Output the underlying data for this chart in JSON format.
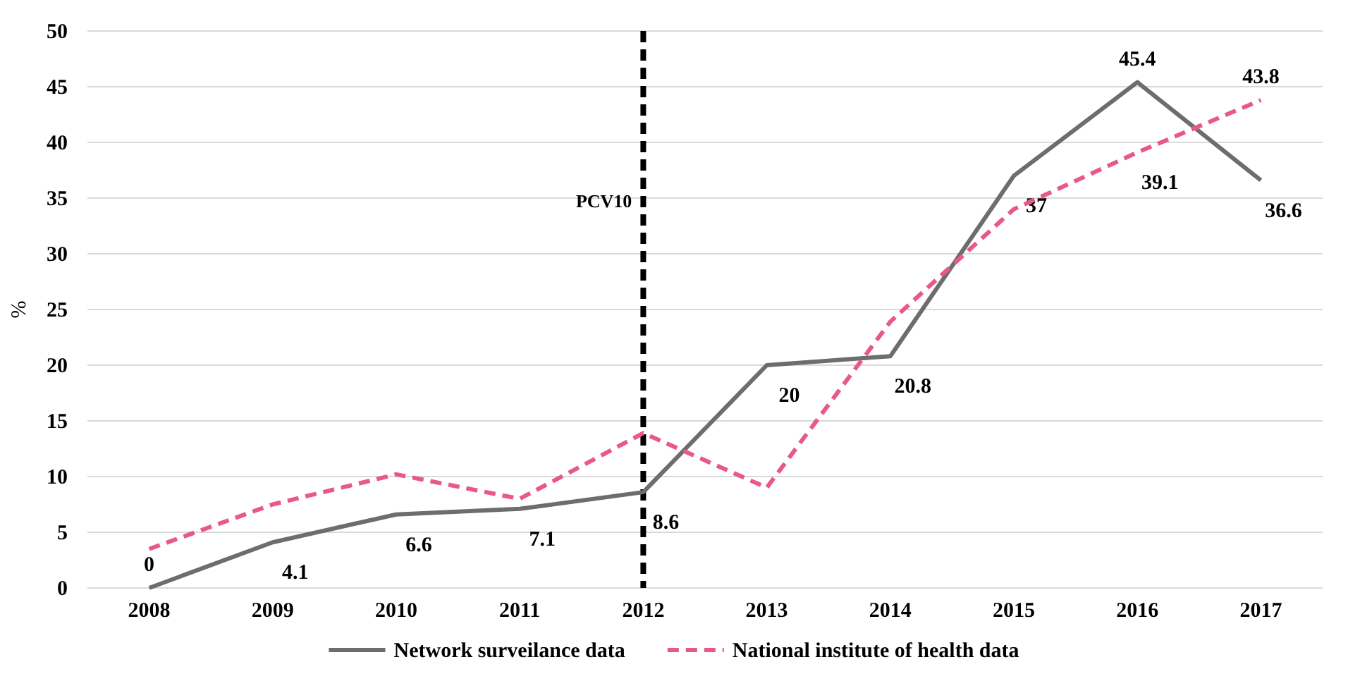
{
  "chart_data": {
    "type": "line",
    "ylabel": "%",
    "categories": [
      "2008",
      "2009",
      "2010",
      "2011",
      "2012",
      "2013",
      "2014",
      "2015",
      "2016",
      "2017"
    ],
    "series": [
      {
        "name": "Network surveilance data",
        "color": "#6d6d6d",
        "line_style": "solid",
        "values": [
          0,
          4.1,
          6.6,
          7.1,
          8.6,
          20,
          20.8,
          37,
          45.4,
          36.6
        ],
        "value_labels": [
          "0",
          "4.1",
          "6.6",
          "7.1",
          "8.6",
          "20",
          "20.8",
          "37",
          "45.4",
          "36.6"
        ]
      },
      {
        "name": "National institute of health data",
        "color": "#e8588a",
        "line_style": "dashed",
        "values": [
          3.5,
          7.5,
          10.2,
          8,
          13.9,
          9,
          23.9,
          34,
          39.1,
          43.8
        ],
        "value_labels": [
          null,
          null,
          null,
          null,
          null,
          null,
          null,
          null,
          "39.1",
          "43.8"
        ]
      }
    ],
    "ylim": [
      0,
      50
    ],
    "yticks": [
      0,
      5,
      10,
      15,
      20,
      25,
      30,
      35,
      40,
      45,
      50
    ],
    "grid": "y",
    "legend": "bottom",
    "marker": "none",
    "ref_lines": [
      {
        "axis": "x",
        "value": "2012",
        "label": "PCV10",
        "color": "#000000",
        "line_style": "dashed"
      }
    ]
  }
}
